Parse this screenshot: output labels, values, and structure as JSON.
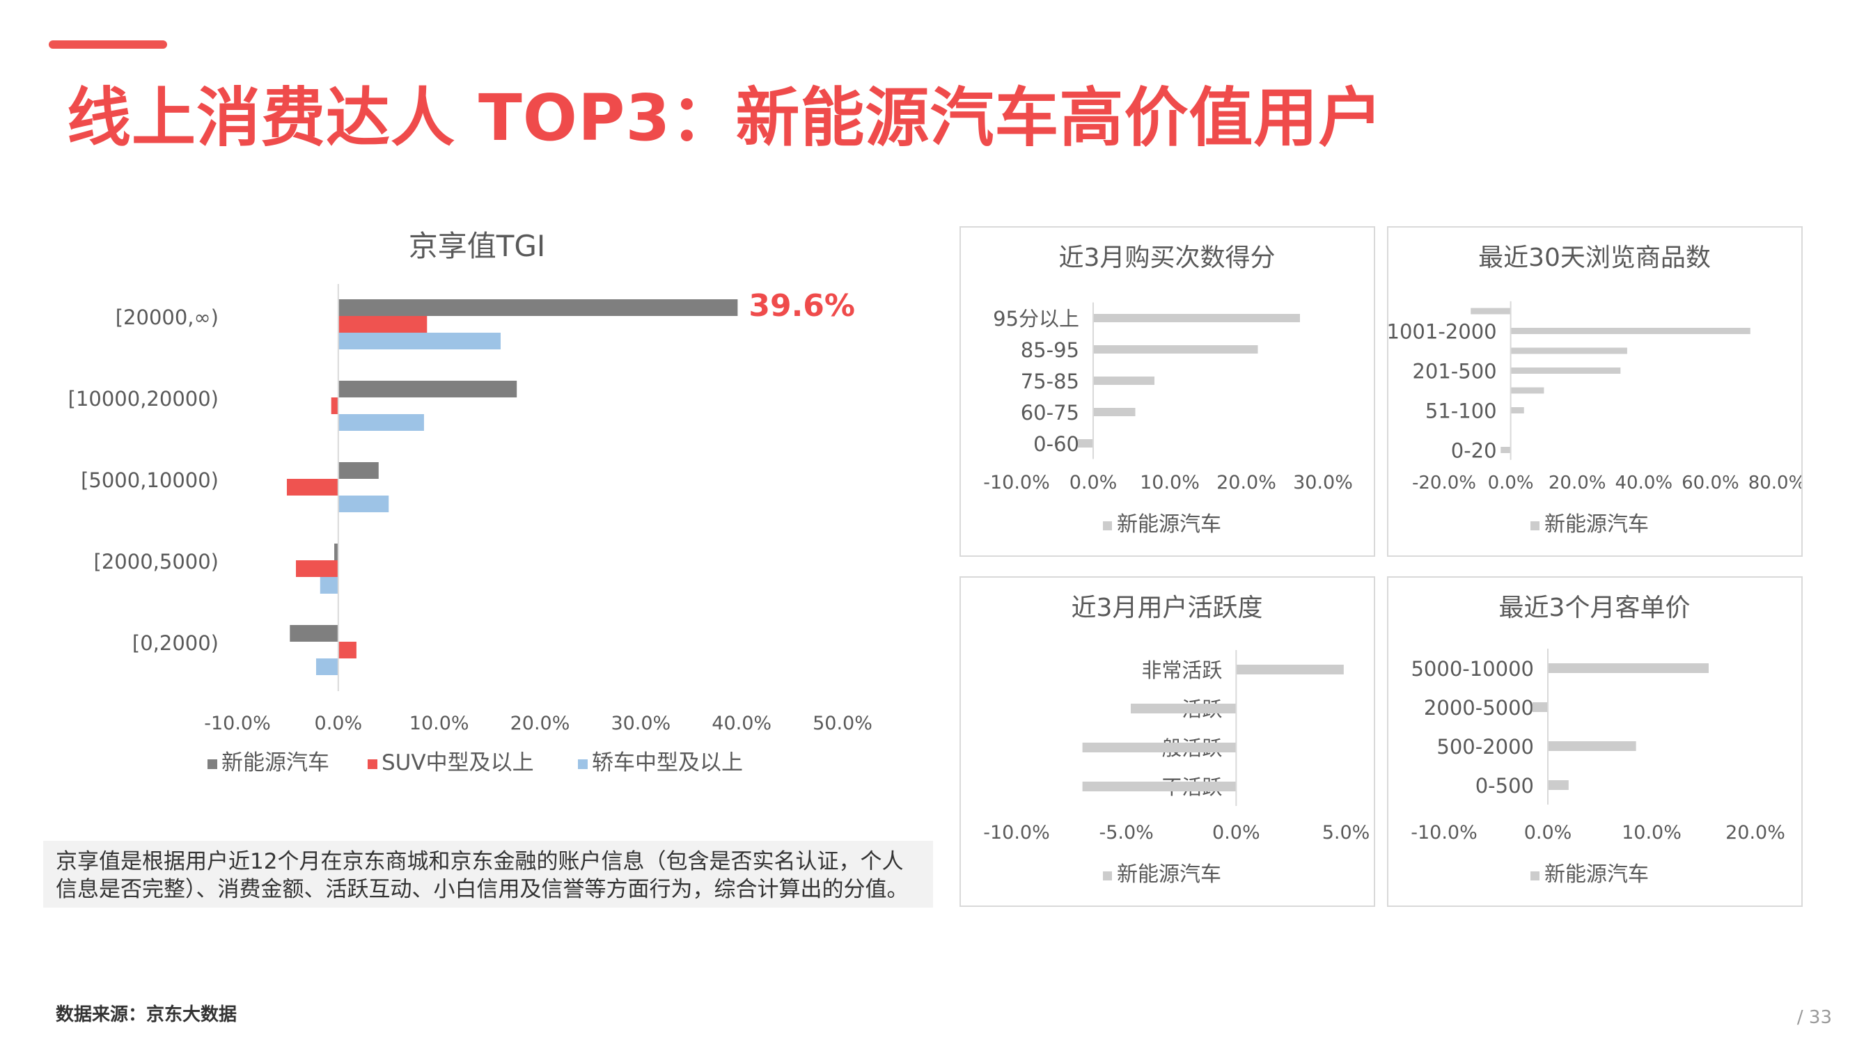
{
  "header": {
    "title": "线上消费达人 TOP3：新能源汽车高价值用户"
  },
  "note": "京享值是根据用户近12个月在京东商城和京东金融的账户信息（包含是否实名认证，个人信息是否完整）、消费金额、活跃互动、小白信用及信誉等方面行为，综合计算出的分值。",
  "footer": {
    "source": "数据来源：京东大数据",
    "page": "/ 33"
  },
  "colors": {
    "accent": "#ef4b4b",
    "series": [
      "#7f7f7f",
      "#ef5350",
      "#9dc3e6"
    ],
    "small": "#cccccc"
  },
  "chart_data": [
    {
      "type": "bar",
      "orientation": "horizontal",
      "title": "京享值TGI",
      "categories": [
        "[20000,∞)",
        "[10000,20000)",
        "[5000,10000)",
        "[2000,5000)",
        "[0,2000)"
      ],
      "series": [
        {
          "name": "新能源汽车",
          "values": [
            39.6,
            17.7,
            4.0,
            -0.4,
            -4.8
          ]
        },
        {
          "name": "SUV中型及以上",
          "values": [
            8.8,
            -0.7,
            -5.1,
            -4.2,
            1.8
          ]
        },
        {
          "name": "轿车中型及以上",
          "values": [
            16.1,
            8.5,
            5.0,
            -1.8,
            -2.2
          ]
        }
      ],
      "xlim": [
        -10,
        50
      ],
      "xticks": [
        "-10.0%",
        "0.0%",
        "10.0%",
        "20.0%",
        "30.0%",
        "40.0%",
        "50.0%"
      ],
      "annotation": "39.6%",
      "legend": "bottom",
      "grid": false
    },
    {
      "type": "bar",
      "orientation": "horizontal",
      "title": "近3月购买次数得分",
      "categories": [
        "95分以上",
        "85-95",
        "75-85",
        "60-75",
        "0-60"
      ],
      "series": [
        {
          "name": "新能源汽车",
          "values": [
            27,
            21.5,
            8,
            5.5,
            -2
          ]
        }
      ],
      "xlim": [
        -10,
        30
      ],
      "xticks": [
        "-10.0%",
        "0.0%",
        "10.0%",
        "20.0%",
        "30.0%"
      ],
      "legend": "bottom"
    },
    {
      "type": "bar",
      "orientation": "horizontal",
      "title": "最近30天浏览商品数",
      "categories": [
        "",
        "1001-2000",
        "",
        "201-500",
        "",
        "51-100",
        "",
        "0-20"
      ],
      "series": [
        {
          "name": "新能源汽车",
          "values": [
            -12,
            72,
            35,
            33,
            10,
            4,
            0,
            -3
          ]
        }
      ],
      "xlim": [
        -20,
        80
      ],
      "xticks": [
        "-20.0%",
        "0.0%",
        "20.0%",
        "40.0%",
        "60.0%",
        "80.0%"
      ],
      "legend": "bottom"
    },
    {
      "type": "bar",
      "orientation": "horizontal",
      "title": "近3月用户活跃度",
      "categories": [
        "非常活跃",
        "活跃",
        "一般活跃",
        "不活跃"
      ],
      "series": [
        {
          "name": "新能源汽车",
          "values": [
            4.9,
            -4.8,
            -7.0,
            -7.0
          ]
        }
      ],
      "xlim": [
        -10,
        5
      ],
      "xticks": [
        "-10.0%",
        "-5.0%",
        "0.0%",
        "5.0%"
      ],
      "legend": "bottom"
    },
    {
      "type": "bar",
      "orientation": "horizontal",
      "title": "最近3个月客单价",
      "categories": [
        "5000-10000",
        "2000-5000",
        "500-2000",
        "0-500"
      ],
      "series": [
        {
          "name": "新能源汽车",
          "values": [
            15.5,
            -1.5,
            8.5,
            2.0
          ]
        }
      ],
      "xlim": [
        -10,
        20
      ],
      "xticks": [
        "-10.0%",
        "0.0%",
        "10.0%",
        "20.0%"
      ],
      "legend": "bottom"
    }
  ]
}
